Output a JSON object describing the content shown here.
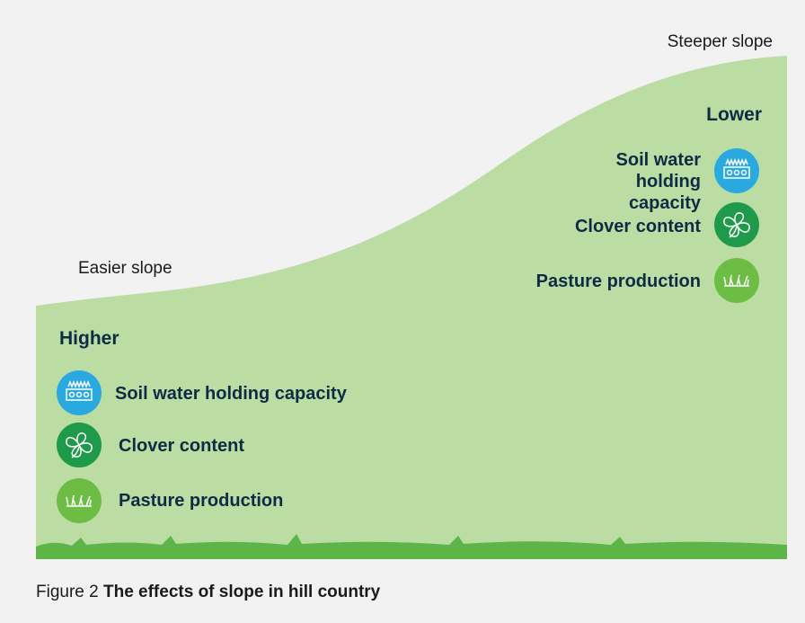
{
  "labels": {
    "steeper": "Steeper slope",
    "easier": "Easier slope"
  },
  "left": {
    "heading": "Higher",
    "items": [
      "Soil water holding capacity",
      "Clover content",
      "Pasture production"
    ]
  },
  "right": {
    "heading": "Lower",
    "items": [
      "Soil water holding capacity",
      "Clover content",
      "Pasture production"
    ]
  },
  "caption": {
    "prefix": "Figure 2",
    "title": "The effects of slope in hill country"
  }
}
